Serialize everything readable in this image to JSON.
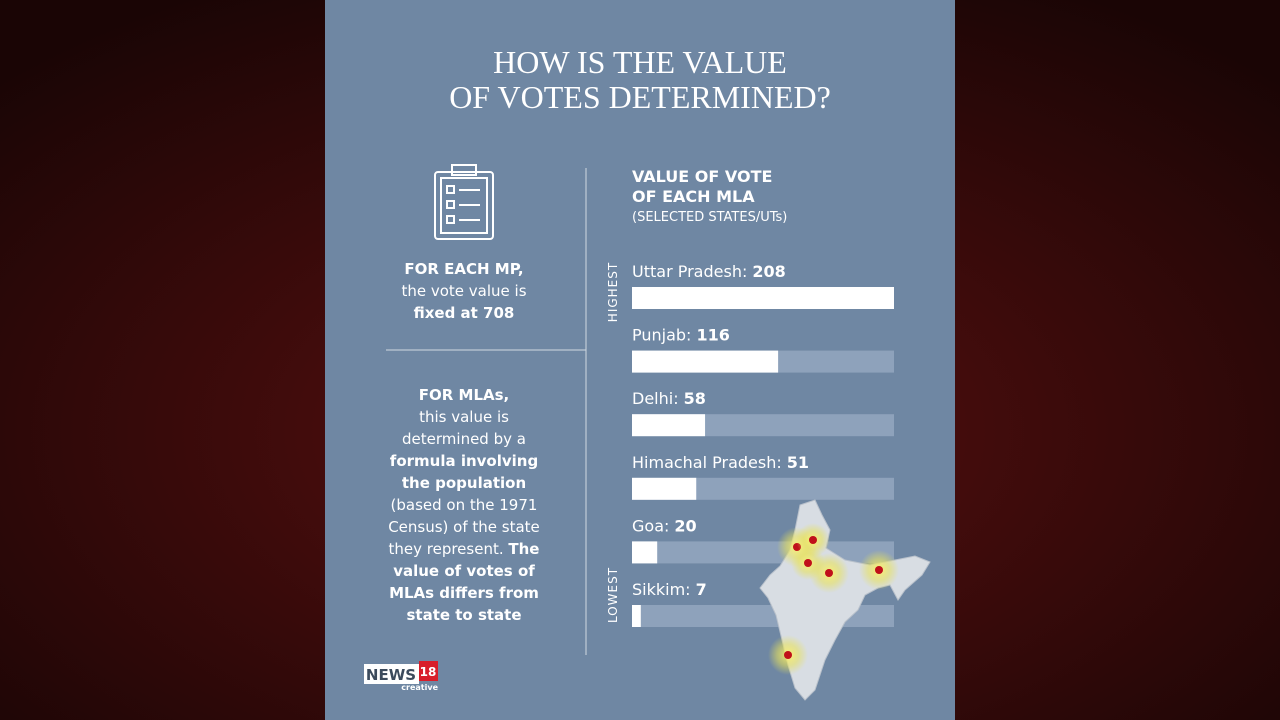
{
  "header": {
    "title_lines": [
      "HOW IS THE VALUE",
      "OF VOTES DETERMINED?"
    ]
  },
  "left_panel": {
    "mp_lines": [
      [
        {
          "text": "FOR EACH MP,",
          "bold": true
        }
      ],
      [
        {
          "text": "the vote value is",
          "bold": false
        }
      ],
      [
        {
          "text": "fixed at 708",
          "bold": true
        }
      ]
    ],
    "mla_lines": [
      [
        {
          "text": "FOR MLAs,",
          "bold": true
        }
      ],
      [
        {
          "text": "this value is",
          "bold": false
        }
      ],
      [
        {
          "text": "determined by a",
          "bold": false
        }
      ],
      [
        {
          "text": "formula involving",
          "bold": true
        }
      ],
      [
        {
          "text": "the population",
          "bold": true
        }
      ],
      [
        {
          "text": "(based on the 1971",
          "bold": false
        }
      ],
      [
        {
          "text": "Census) of the state",
          "bold": false
        }
      ],
      [
        {
          "text": "they represent. ",
          "bold": false
        },
        {
          "text": "The",
          "bold": true
        }
      ],
      [
        {
          "text": "value of votes of",
          "bold": true
        }
      ],
      [
        {
          "text": "MLAs differs from",
          "bold": true
        }
      ],
      [
        {
          "text": "state to state",
          "bold": true
        }
      ]
    ]
  },
  "chart_data": {
    "type": "bar",
    "orientation": "horizontal",
    "title_lines": [
      "VALUE OF VOTE",
      "OF EACH MLA"
    ],
    "subtitle": "(SELECTED STATES/UTs)",
    "top_label": "HIGHEST",
    "bottom_label": "LOWEST",
    "categories": [
      "Uttar Pradesh:",
      "Punjab:",
      "Delhi:",
      "Himachal Pradesh:",
      "Goa:",
      "Sikkim:"
    ],
    "values": [
      208,
      116,
      58,
      51,
      20,
      7
    ],
    "xlim": [
      0,
      208
    ],
    "color": "#ffffff",
    "track_color": "#8ea2bb"
  },
  "logo": {
    "brand": "NEWS",
    "number": "18",
    "tagline": "creative"
  }
}
